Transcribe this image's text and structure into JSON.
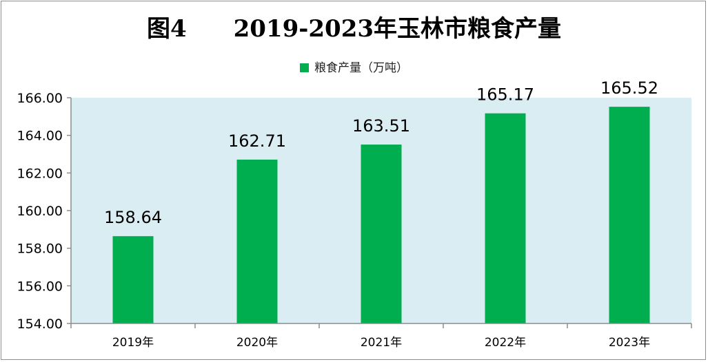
{
  "chart_data": {
    "type": "bar",
    "title": "图4　　2019-2023年玉林市粮食产量",
    "categories": [
      "2019年",
      "2020年",
      "2021年",
      "2022年",
      "2023年"
    ],
    "series": [
      {
        "name": "粮食产量（万吨）",
        "values": [
          158.64,
          162.71,
          163.51,
          165.17,
          165.52
        ]
      }
    ],
    "data_labels": [
      "158.64",
      "162.71",
      "163.51",
      "165.17",
      "165.52"
    ],
    "y_ticks": [
      "154.00",
      "156.00",
      "158.00",
      "160.00",
      "162.00",
      "164.00",
      "166.00"
    ],
    "ylim": [
      154,
      166
    ],
    "xlabel": "",
    "ylabel": "",
    "legend_position": "top-center",
    "grid": false,
    "colors": {
      "bar": "#00AE4F",
      "plot_background": "#DAEDF3",
      "axis": "#8c8c8c"
    }
  }
}
